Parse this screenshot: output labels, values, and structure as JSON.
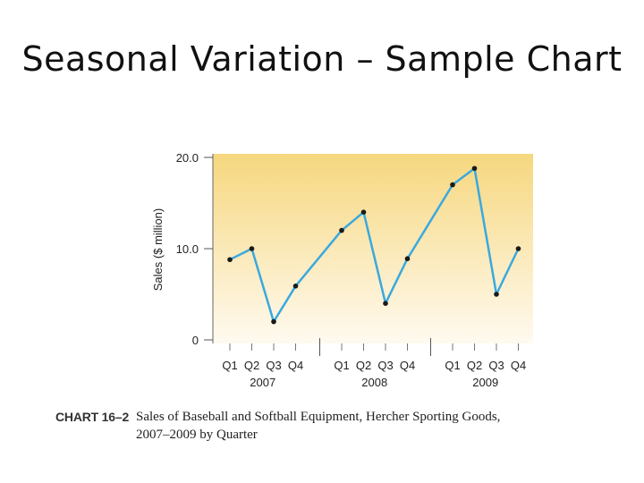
{
  "slide": {
    "title": "Seasonal Variation – Sample Chart"
  },
  "caption": {
    "label": "CHART 16–2",
    "text_line1": "Sales of Baseball and Softball Equipment, Hercher Sporting Goods,",
    "text_line2": "2007–2009 by Quarter"
  },
  "chart_data": {
    "type": "line",
    "title": "",
    "xlabel": "",
    "ylabel": "Sales ($ million)",
    "ylim": [
      0,
      20
    ],
    "yticks": [
      0,
      10.0,
      20.0
    ],
    "ytick_labels": [
      "0",
      "10.0",
      "20.0"
    ],
    "quarter_labels": [
      "Q1",
      "Q2",
      "Q3",
      "Q4"
    ],
    "groups": [
      {
        "year": "2007",
        "values": [
          8.8,
          10.0,
          2.0,
          5.9
        ]
      },
      {
        "year": "2008",
        "values": [
          12.0,
          14.0,
          4.0,
          8.9
        ]
      },
      {
        "year": "2009",
        "values": [
          17.0,
          18.8,
          5.0,
          10.0
        ]
      }
    ],
    "grid": false,
    "colors": {
      "line": "#3aa9de",
      "point": "#1a1a1a",
      "background_top": "#f6d77e",
      "background_bottom": "#fffaf0"
    }
  }
}
